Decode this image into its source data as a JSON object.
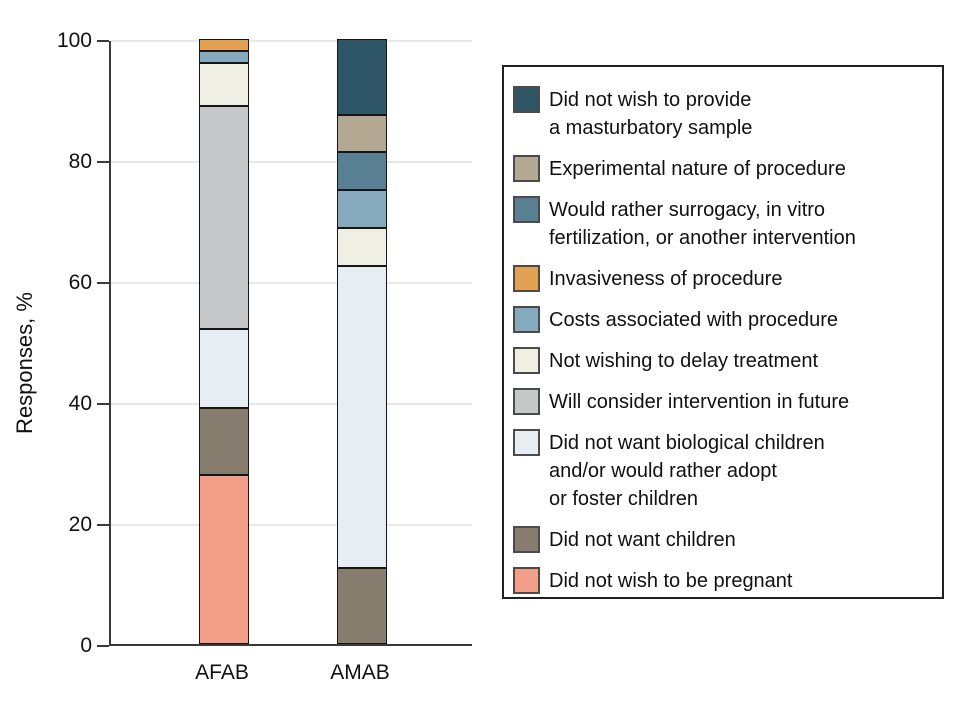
{
  "y_axis": {
    "title": "Responses, %",
    "tick_labels": [
      "0",
      "20",
      "40",
      "60",
      "80",
      "100"
    ]
  },
  "x_axis": {
    "labels": [
      "AFAB",
      "AMAB"
    ]
  },
  "chart_data": {
    "type": "bar",
    "stacked": true,
    "categories": [
      "AFAB",
      "AMAB"
    ],
    "ylabel": "Responses, %",
    "ylim": [
      0,
      100
    ],
    "yticks": [
      0,
      20,
      40,
      60,
      80,
      100
    ],
    "grid": true,
    "legend_position": "right",
    "series": [
      {
        "name": "Did not wish to provide a masturbatory sample",
        "label_lines": [
          "Did not wish to provide",
          "a masturbatory sample"
        ],
        "color": "#2E5566",
        "values": [
          0,
          12.5
        ]
      },
      {
        "name": "Experimental nature of procedure",
        "label_lines": [
          "Experimental nature of procedure"
        ],
        "color": "#B3A992",
        "values": [
          0,
          6.25
        ]
      },
      {
        "name": "Would rather surrogacy, in vitro fertilization, or another intervention",
        "label_lines": [
          "Would rather surrogacy, in vitro",
          "fertilization, or another intervention"
        ],
        "color": "#597F93",
        "values": [
          0,
          6.25
        ]
      },
      {
        "name": "Invasiveness of procedure",
        "label_lines": [
          "Invasiveness of procedure"
        ],
        "color": "#E4A153",
        "values": [
          2,
          0
        ]
      },
      {
        "name": "Costs associated with procedure",
        "label_lines": [
          "Costs associated with procedure"
        ],
        "color": "#86AABD",
        "values": [
          2,
          6.25
        ]
      },
      {
        "name": "Not wishing to delay treatment",
        "label_lines": [
          "Not wishing to delay treatment"
        ],
        "color": "#EFEFE3",
        "values": [
          7,
          6.25
        ]
      },
      {
        "name": "Will consider intervention in future",
        "label_lines": [
          "Will consider intervention in future"
        ],
        "color": "#C7C8CA",
        "values": [
          37,
          0
        ]
      },
      {
        "name": "Did not want biological children and/or would rather adopt or foster children",
        "label_lines": [
          "Did not want biological children",
          "and/or would rather adopt",
          "or foster children"
        ],
        "color": "#E6EEF3",
        "values": [
          13,
          50
        ]
      },
      {
        "name": "Did not want children",
        "label_lines": [
          "Did not want children"
        ],
        "color": "#867D6E",
        "values": [
          11,
          12.5
        ]
      },
      {
        "name": "Did not wish to be pregnant",
        "label_lines": [
          "Did not wish to be pregnant"
        ],
        "color": "#F29E89",
        "values": [
          28,
          0
        ]
      }
    ]
  }
}
